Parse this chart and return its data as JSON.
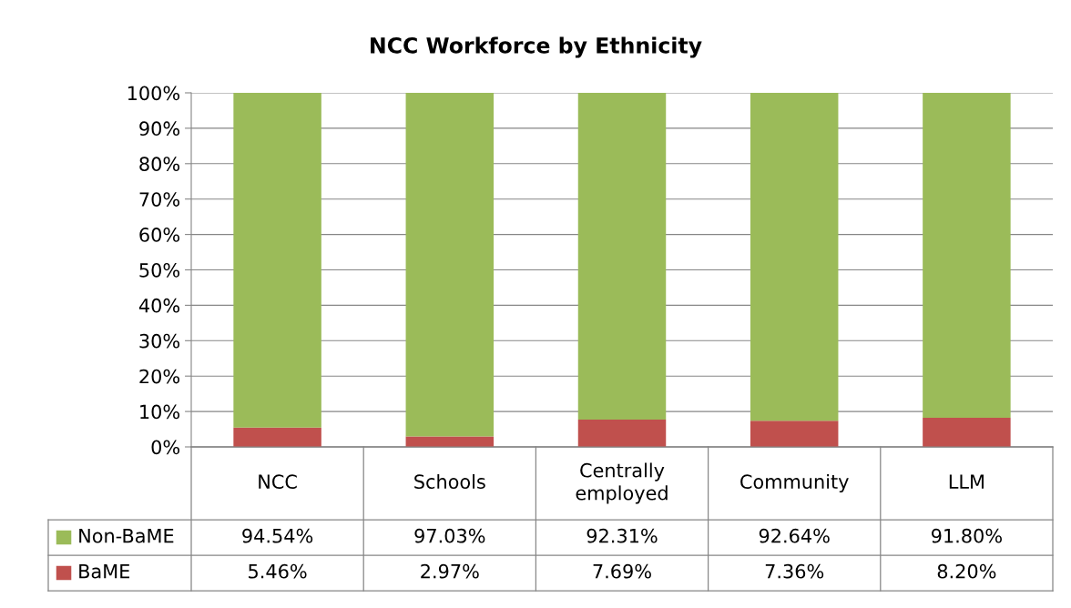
{
  "chart_data": {
    "type": "bar",
    "title": "NCC Workforce by Ethnicity",
    "stacked": true,
    "categories": [
      "NCC",
      "Schools",
      "Centrally employed",
      "Community",
      "LLM"
    ],
    "series": [
      {
        "name": "BaME",
        "color": "#c0504d",
        "values": [
          5.46,
          2.97,
          7.69,
          7.36,
          8.2
        ],
        "value_labels": [
          "5.46%",
          "2.97%",
          "7.69%",
          "7.36%",
          "8.20%"
        ]
      },
      {
        "name": "Non-BaME",
        "color": "#9bbb59",
        "values": [
          94.54,
          97.03,
          92.31,
          92.64,
          91.8
        ],
        "value_labels": [
          "94.54%",
          "97.03%",
          "92.31%",
          "92.64%",
          "91.80%"
        ]
      }
    ],
    "ylim": [
      0,
      100
    ],
    "yticks": [
      {
        "value": 0,
        "label": "0%"
      },
      {
        "value": 10,
        "label": "10%"
      },
      {
        "value": 20,
        "label": "20%"
      },
      {
        "value": 30,
        "label": "30%"
      },
      {
        "value": 40,
        "label": "40%"
      },
      {
        "value": 50,
        "label": "50%"
      },
      {
        "value": 60,
        "label": "60%"
      },
      {
        "value": 70,
        "label": "70%"
      },
      {
        "value": 80,
        "label": "80%"
      },
      {
        "value": 90,
        "label": "90%"
      },
      {
        "value": 100,
        "label": "100%"
      }
    ],
    "grid": "y",
    "legend": "bottom"
  }
}
